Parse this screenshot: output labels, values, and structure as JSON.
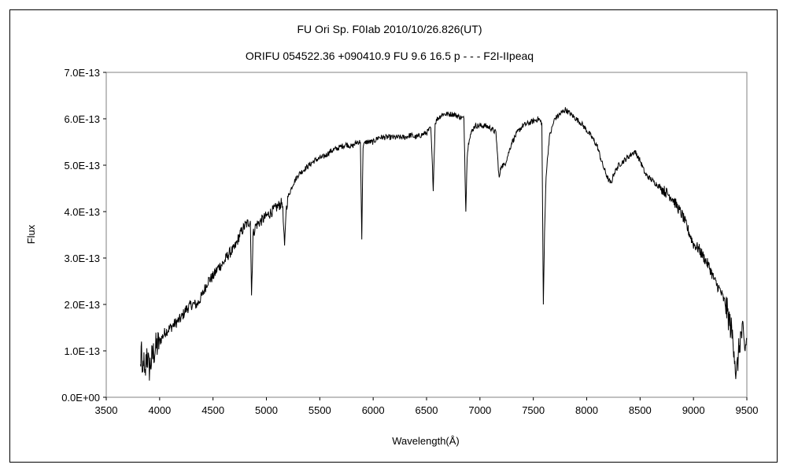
{
  "chart_data": {
    "type": "line",
    "title": "FU Ori    Sp. F0Iab   2010/10/26.826(UT)",
    "subtitle": "ORIFU 054522.36 +090410.9 FU 9.6 16.5 p - - - F2I-IIpeaq",
    "xlabel": "Wavelength(Å)",
    "ylabel": "Flux",
    "xlim": [
      3500,
      9500
    ],
    "ylim": [
      0,
      7e-13
    ],
    "x_ticks": [
      3500,
      4000,
      4500,
      5000,
      5500,
      6000,
      6500,
      7000,
      7500,
      8000,
      8500,
      9000,
      9500
    ],
    "y_ticks": [
      "0.0E+00",
      "1.0E-13",
      "2.0E-13",
      "3.0E-13",
      "4.0E-13",
      "5.0E-13",
      "6.0E-13",
      "7.0E-13"
    ],
    "grid": false,
    "legend": "none",
    "line_color": "#000000",
    "series": [
      {
        "x": [
          3820,
          3830,
          3840,
          3850,
          3860,
          3880,
          3900,
          3950,
          4000,
          4050,
          4100,
          4150,
          4200,
          4250,
          4300,
          4350,
          4400,
          4450,
          4500,
          4550,
          4600,
          4650,
          4700,
          4750,
          4800,
          4850,
          4861,
          4875,
          4900,
          4950,
          5000,
          5050,
          5100,
          5150,
          5170,
          5183,
          5200,
          5250,
          5300,
          5350,
          5400,
          5450,
          5500,
          5550,
          5600,
          5650,
          5700,
          5750,
          5800,
          5850,
          5880,
          5893,
          5905,
          5930,
          5950,
          6000,
          6050,
          6100,
          6150,
          6200,
          6250,
          6300,
          6350,
          6400,
          6450,
          6500,
          6540,
          6563,
          6580,
          6600,
          6650,
          6700,
          6750,
          6800,
          6850,
          6868,
          6880,
          6900,
          6950,
          7000,
          7050,
          7100,
          7150,
          7180,
          7200,
          7230,
          7260,
          7300,
          7350,
          7400,
          7450,
          7500,
          7550,
          7580,
          7594,
          7605,
          7620,
          7650,
          7700,
          7750,
          7800,
          7850,
          7900,
          7950,
          8000,
          8050,
          8100,
          8150,
          8200,
          8230,
          8250,
          8300,
          8350,
          8400,
          8450,
          8500,
          8550,
          8600,
          8650,
          8700,
          8750,
          8800,
          8850,
          8900,
          8950,
          9000,
          9050,
          9100,
          9150,
          9200,
          9250,
          9300,
          9350,
          9380,
          9400,
          9420,
          9440,
          9460,
          9480,
          9500
        ],
        "y": [
          0.6,
          1.2,
          0.2,
          0.9,
          0.3,
          1.0,
          0.6,
          1.0,
          1.2,
          1.4,
          1.5,
          1.6,
          1.7,
          1.9,
          2.0,
          2.0,
          2.2,
          2.5,
          2.6,
          2.8,
          2.9,
          3.1,
          3.2,
          3.5,
          3.7,
          3.8,
          2.2,
          3.5,
          3.7,
          3.8,
          3.9,
          4.0,
          4.1,
          4.2,
          3.2,
          4.0,
          4.3,
          4.6,
          4.8,
          4.9,
          5.0,
          5.1,
          5.15,
          5.2,
          5.3,
          5.35,
          5.4,
          5.45,
          5.4,
          5.5,
          5.5,
          3.4,
          5.4,
          5.5,
          5.5,
          5.5,
          5.6,
          5.6,
          5.6,
          5.6,
          5.6,
          5.6,
          5.65,
          5.6,
          5.65,
          5.7,
          5.8,
          4.5,
          5.9,
          6.0,
          6.1,
          6.1,
          6.1,
          6.05,
          6.0,
          4.0,
          5.2,
          5.6,
          5.85,
          5.85,
          5.85,
          5.8,
          5.7,
          4.7,
          5.0,
          5.0,
          5.2,
          5.5,
          5.7,
          5.85,
          5.9,
          5.95,
          6.0,
          5.9,
          2.0,
          3.5,
          4.8,
          5.6,
          6.0,
          6.1,
          6.2,
          6.1,
          6.0,
          5.9,
          5.75,
          5.6,
          5.4,
          5.0,
          4.7,
          4.6,
          4.8,
          5.0,
          5.1,
          5.2,
          5.3,
          5.1,
          4.8,
          4.7,
          4.6,
          4.5,
          4.4,
          4.3,
          4.1,
          3.9,
          3.6,
          3.3,
          3.2,
          3.0,
          2.8,
          2.5,
          2.3,
          2.0,
          1.5,
          1.1,
          0.4,
          0.9,
          1.3,
          1.4,
          1.0,
          1.25
        ]
      }
    ],
    "y_scale_note": "y values in units of 1E-13"
  }
}
